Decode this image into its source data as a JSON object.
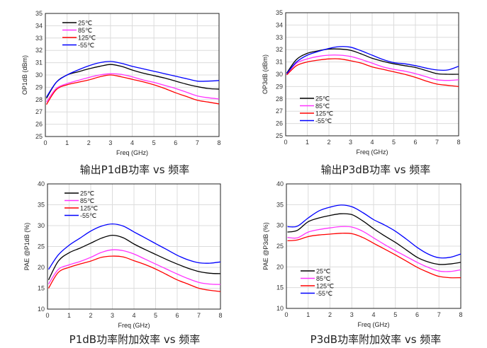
{
  "chart_data": [
    {
      "type": "line",
      "title": "输出P1dB功率 vs 频率",
      "xlabel": "Freq (GHz)",
      "ylabel": "OP1dB (dBm)",
      "xlim": [
        0,
        8
      ],
      "ylim": [
        25,
        35
      ],
      "xticks": [
        "0",
        "1",
        "2",
        "3",
        "4",
        "5",
        "6",
        "7",
        "8"
      ],
      "yticks": [
        "25",
        "26",
        "27",
        "28",
        "29",
        "30",
        "31",
        "32",
        "33",
        "34",
        "35"
      ],
      "ystep": 1,
      "grid": true,
      "legend": "top-left",
      "x": [
        0.05,
        0.5,
        1,
        1.5,
        2,
        2.5,
        3,
        3.5,
        4,
        4.5,
        5,
        5.5,
        6,
        6.5,
        7,
        7.5,
        8
      ],
      "series": [
        {
          "name": "25℃",
          "color": "#000000",
          "values": [
            28.1,
            29.4,
            30.0,
            30.25,
            30.5,
            30.7,
            30.85,
            30.7,
            30.4,
            30.15,
            29.95,
            29.75,
            29.5,
            29.25,
            29.05,
            28.9,
            28.85
          ]
        },
        {
          "name": "85℃",
          "color": "#ff33ff",
          "values": [
            27.8,
            28.9,
            29.3,
            29.55,
            29.8,
            30.0,
            30.1,
            30.05,
            29.85,
            29.6,
            29.4,
            29.15,
            28.9,
            28.6,
            28.3,
            28.15,
            28.05
          ]
        },
        {
          "name": "125℃",
          "color": "#ff0000",
          "values": [
            27.6,
            28.8,
            29.2,
            29.4,
            29.6,
            29.85,
            30.0,
            29.85,
            29.65,
            29.45,
            29.2,
            28.9,
            28.55,
            28.25,
            27.95,
            27.8,
            27.65
          ]
        },
        {
          "name": "-55℃",
          "color": "#0000ff",
          "values": [
            28.2,
            29.4,
            30.0,
            30.4,
            30.75,
            31.0,
            31.1,
            30.95,
            30.7,
            30.5,
            30.3,
            30.1,
            29.9,
            29.7,
            29.5,
            29.5,
            29.55
          ]
        }
      ]
    },
    {
      "type": "line",
      "title": "输出P3dB功率 vs 频率",
      "xlabel": "Freq (GHz)",
      "ylabel": "OP3dB (dBm)",
      "xlim": [
        0,
        8
      ],
      "ylim": [
        25,
        35
      ],
      "xticks": [
        "0",
        "1",
        "2",
        "3",
        "4",
        "5",
        "6",
        "7",
        "8"
      ],
      "yticks": [
        "25",
        "26",
        "27",
        "28",
        "29",
        "30",
        "31",
        "32",
        "33",
        "34",
        "35"
      ],
      "ystep": 1,
      "grid": true,
      "legend": "bottom-left",
      "x": [
        0.05,
        0.5,
        1,
        1.5,
        2,
        2.5,
        3,
        3.5,
        4,
        4.5,
        5,
        5.5,
        6,
        6.5,
        7,
        7.5,
        8
      ],
      "series": [
        {
          "name": "25℃",
          "color": "#000000",
          "values": [
            30.1,
            31.2,
            31.7,
            31.9,
            32.05,
            32.05,
            31.95,
            31.65,
            31.3,
            31.05,
            30.85,
            30.7,
            30.55,
            30.3,
            30.05,
            30.0,
            30.0
          ]
        },
        {
          "name": "85℃",
          "color": "#ff33ff",
          "values": [
            30.0,
            30.9,
            31.25,
            31.45,
            31.55,
            31.55,
            31.45,
            31.2,
            30.9,
            30.6,
            30.4,
            30.25,
            30.05,
            29.8,
            29.55,
            29.5,
            29.55
          ]
        },
        {
          "name": "125℃",
          "color": "#ff0000",
          "values": [
            29.95,
            30.7,
            31.0,
            31.15,
            31.25,
            31.25,
            31.1,
            30.9,
            30.6,
            30.4,
            30.2,
            30.0,
            29.75,
            29.45,
            29.2,
            29.1,
            29.0
          ]
        },
        {
          "name": "-55℃",
          "color": "#0000ff",
          "values": [
            30.05,
            31.0,
            31.55,
            31.85,
            32.1,
            32.25,
            32.2,
            31.9,
            31.55,
            31.2,
            30.95,
            30.85,
            30.7,
            30.5,
            30.35,
            30.35,
            30.65
          ]
        }
      ]
    },
    {
      "type": "line",
      "title": "P1dB功率附加效率 vs 频率",
      "xlabel": "Freq (GHz)",
      "ylabel": "PAE @P1dB (%)",
      "xlim": [
        0,
        8
      ],
      "ylim": [
        10,
        40
      ],
      "xticks": [
        "0",
        "1",
        "2",
        "3",
        "4",
        "5",
        "6",
        "7",
        "8"
      ],
      "yticks": [
        "10",
        "15",
        "20",
        "25",
        "30",
        "35",
        "40"
      ],
      "ystep": 5,
      "grid": true,
      "legend": "top-left",
      "x": [
        0.05,
        0.5,
        1,
        1.5,
        2,
        2.5,
        3,
        3.5,
        4,
        4.5,
        5,
        5.5,
        6,
        6.5,
        7,
        7.5,
        8
      ],
      "series": [
        {
          "name": "25℃",
          "color": "#000000",
          "values": [
            17,
            21.5,
            23.5,
            24.6,
            25.8,
            27,
            27.7,
            27.1,
            25.6,
            24.3,
            23.1,
            21.9,
            20.8,
            19.8,
            19,
            18.6,
            18.5
          ]
        },
        {
          "name": "85℃",
          "color": "#ff33ff",
          "values": [
            16,
            19.5,
            20.6,
            21.4,
            22.4,
            23.6,
            24.2,
            24,
            23.2,
            22,
            20.8,
            19.6,
            18.4,
            17.3,
            16.4,
            16,
            15.9
          ]
        },
        {
          "name": "125℃",
          "color": "#ff0000",
          "values": [
            15,
            18.8,
            20,
            20.8,
            21.5,
            22.4,
            22.7,
            22.5,
            21.6,
            20.7,
            19.6,
            18.3,
            17,
            16,
            15,
            14.5,
            14.2
          ]
        },
        {
          "name": "-55℃",
          "color": "#0000ff",
          "values": [
            19.5,
            23,
            25.3,
            27,
            28.7,
            29.9,
            30.4,
            29.9,
            28.5,
            27.1,
            25.7,
            24.3,
            22.9,
            21.8,
            21.1,
            21,
            21.3
          ]
        }
      ]
    },
    {
      "type": "line",
      "title": "P3dB功率附加效率 vs 频率",
      "xlabel": "Freq (GHz)",
      "ylabel": "PAE @P3dB (%)",
      "xlim": [
        0,
        8
      ],
      "ylim": [
        10,
        40
      ],
      "xticks": [
        "0",
        "1",
        "2",
        "3",
        "4",
        "5",
        "6",
        "7",
        "8"
      ],
      "yticks": [
        "10",
        "15",
        "20",
        "25",
        "30",
        "35",
        "40"
      ],
      "ystep": 5,
      "grid": true,
      "legend": "bottom-left",
      "x": [
        0.05,
        0.5,
        1,
        1.5,
        2,
        2.5,
        3,
        3.5,
        4,
        4.5,
        5,
        5.5,
        6,
        6.5,
        7,
        7.5,
        8
      ],
      "series": [
        {
          "name": "25℃",
          "color": "#000000",
          "values": [
            28.4,
            28.8,
            30.9,
            31.8,
            32.4,
            32.8,
            32.6,
            31.1,
            29.2,
            27.5,
            25.9,
            24.1,
            22.3,
            21.2,
            20.6,
            20.7,
            21.1
          ]
        },
        {
          "name": "85℃",
          "color": "#ff33ff",
          "values": [
            27.1,
            27,
            28.4,
            29,
            29.4,
            29.7,
            29.6,
            28.6,
            27,
            25.4,
            23.9,
            22.5,
            21.1,
            19.9,
            19,
            18.9,
            19.3
          ]
        },
        {
          "name": "125℃",
          "color": "#ff0000",
          "values": [
            26.3,
            26.5,
            27.3,
            27.7,
            27.9,
            28.1,
            28,
            27.1,
            25.7,
            24.3,
            22.9,
            21.4,
            19.9,
            18.7,
            17.7,
            17.4,
            17.4
          ]
        },
        {
          "name": "-55℃",
          "color": "#0000ff",
          "values": [
            29.7,
            29.8,
            31.8,
            33.5,
            34.4,
            34.9,
            34.5,
            33.1,
            31.4,
            30.1,
            28.6,
            26.7,
            24.7,
            23.1,
            22.2,
            22.3,
            23.1
          ]
        }
      ]
    }
  ]
}
